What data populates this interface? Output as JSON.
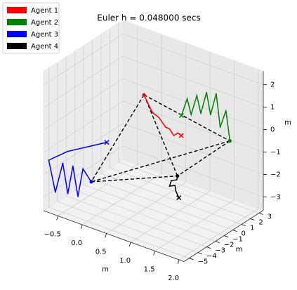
{
  "chart_data": {
    "type": "line3d",
    "title": "Euler h = 0.048000 secs",
    "xlabel": "m",
    "ylabel": "m",
    "zlabel": "m",
    "xlim": [
      -0.8,
      2.1
    ],
    "ylim": [
      -5.6,
      3.5
    ],
    "zlim": [
      -3.6,
      2.6
    ],
    "xticks": [
      {
        "value": -0.5,
        "label": "−0.5"
      },
      {
        "value": 0,
        "label": "0.0"
      },
      0.5,
      {
        "value": 1,
        "label": "1.0"
      },
      1.5,
      {
        "value": 2,
        "label": "2.0"
      }
    ],
    "yticks": [
      {
        "value": -5,
        "label": "−5"
      },
      {
        "value": -4,
        "label": "−4"
      },
      {
        "value": -3,
        "label": "−3"
      },
      {
        "value": -2,
        "label": "−2"
      },
      {
        "value": -1,
        "label": "−1"
      },
      0,
      1,
      2,
      3
    ],
    "zticks": [
      {
        "value": -3,
        "label": "−3"
      },
      {
        "value": -2,
        "label": "−2"
      },
      {
        "value": -1,
        "label": "−1"
      },
      0,
      1,
      2
    ],
    "grid": true,
    "legend": "upper left",
    "series": [
      {
        "name": "Agent 1",
        "color": "#ff0000",
        "x": [
          1.0,
          0.95,
          0.9,
          0.85,
          0.8,
          0.7,
          0.6,
          0.55,
          0.5
        ],
        "y": [
          0.2,
          0.1,
          -0.1,
          -0.3,
          -0.5,
          -0.7,
          -0.9,
          -1.1,
          -1.3
        ],
        "z": [
          -0.3,
          -0.2,
          -0.3,
          0.0,
          0.1,
          0.5,
          0.7,
          1.1,
          1.5
        ]
      },
      {
        "name": "Agent 2",
        "color": "#008000",
        "x": [
          0.5,
          0.6,
          0.7,
          0.8,
          0.9,
          1.0,
          1.1,
          1.2,
          1.3,
          1.4,
          1.5
        ],
        "y": [
          3.0,
          3.1,
          3.0,
          3.1,
          3.0,
          3.1,
          3.0,
          3.1,
          3.0,
          3.1,
          3.0
        ],
        "z": [
          -0.5,
          0.3,
          -0.3,
          0.6,
          -0.1,
          0.9,
          0.0,
          1.0,
          -0.4,
          0.4,
          -0.85
        ]
      },
      {
        "name": "Agent 3",
        "color": "#0000ff",
        "x": [
          0.2,
          -0.5,
          -0.8,
          -0.7,
          -0.6,
          -0.55,
          -0.5,
          -0.45,
          -0.4,
          -0.3
        ],
        "y": [
          -3.9,
          -4.5,
          -5.0,
          -4.8,
          -4.5,
          -4.2,
          -3.9,
          -3.6,
          -3.3,
          -2.9
        ],
        "z": [
          -0.2,
          -1.0,
          -1.5,
          -2.9,
          -1.6,
          -3.0,
          -1.8,
          -3.2,
          -2.0,
          -2.6
        ]
      },
      {
        "name": "Agent 4",
        "color": "#000000",
        "x": [
          1.4,
          1.3,
          1.25,
          1.1,
          1.1,
          1.25,
          1.3
        ],
        "y": [
          -2.3,
          -2.1,
          -1.9,
          -1.7,
          -1.5,
          -1.7,
          -1.9
        ],
        "z": [
          -2.13,
          -1.95,
          -1.8,
          -2.0,
          -1.8,
          -1.6,
          -1.34
        ]
      }
    ]
  }
}
